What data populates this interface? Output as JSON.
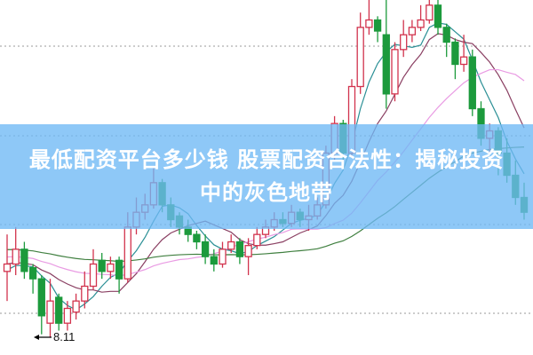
{
  "title_lines": [
    "最低配资平台多少钱 股票配资合法性：揭秘投资",
    "中的灰色地带"
  ],
  "colors": {
    "up": "#d2334d",
    "down": "#1c9a3c",
    "banner": "#6eb9f5",
    "ma1": "#2a8f95",
    "ma2": "#8a3f62",
    "ma3": "#e99be3",
    "ma4": "#3f7f3f"
  },
  "chart_data": {
    "type": "candlestick",
    "low_annotation": "8.11",
    "grid": "dotted horizontal",
    "moving_averages": [
      "ma1",
      "ma2",
      "ma3",
      "ma4"
    ],
    "candles": [
      [
        9.0,
        9.5,
        8.6,
        9.1
      ],
      [
        9.1,
        9.6,
        8.95,
        9.3
      ],
      [
        9.3,
        9.4,
        8.9,
        9.0
      ],
      [
        9.05,
        9.1,
        8.7,
        8.9
      ],
      [
        8.9,
        8.95,
        8.15,
        8.4
      ],
      [
        8.3,
        8.9,
        8.11,
        8.6
      ],
      [
        8.65,
        8.7,
        8.2,
        8.3
      ],
      [
        8.3,
        8.6,
        8.2,
        8.5
      ],
      [
        8.45,
        8.7,
        8.35,
        8.6
      ],
      [
        8.6,
        9.0,
        8.5,
        8.8
      ],
      [
        8.8,
        9.3,
        8.75,
        9.1
      ],
      [
        9.15,
        9.25,
        8.9,
        9.0
      ],
      [
        9.0,
        9.2,
        8.9,
        9.1
      ],
      [
        9.15,
        9.2,
        8.7,
        8.9
      ],
      [
        8.9,
        9.8,
        8.85,
        9.6
      ],
      [
        9.6,
        10.0,
        9.5,
        9.8
      ],
      [
        9.8,
        10.05,
        9.7,
        9.9
      ],
      [
        9.9,
        10.4,
        9.85,
        10.2
      ],
      [
        10.2,
        10.25,
        9.8,
        9.9
      ],
      [
        9.9,
        10.0,
        9.6,
        9.7
      ],
      [
        9.75,
        9.8,
        9.5,
        9.6
      ],
      [
        9.6,
        9.7,
        9.4,
        9.5
      ],
      [
        9.5,
        9.55,
        9.3,
        9.4
      ],
      [
        9.4,
        9.5,
        9.1,
        9.2
      ],
      [
        9.2,
        9.3,
        9.0,
        9.1
      ],
      [
        9.1,
        9.4,
        9.05,
        9.3
      ],
      [
        9.3,
        9.5,
        9.25,
        9.4
      ],
      [
        9.4,
        9.45,
        9.1,
        9.2
      ],
      [
        9.2,
        9.45,
        8.95,
        9.35
      ],
      [
        9.35,
        9.6,
        9.3,
        9.5
      ],
      [
        9.5,
        9.7,
        9.45,
        9.6
      ],
      [
        9.6,
        9.8,
        9.55,
        9.7
      ],
      [
        9.7,
        9.8,
        9.6,
        9.65
      ],
      [
        9.65,
        9.9,
        9.6,
        9.8
      ],
      [
        9.8,
        9.85,
        9.6,
        9.7
      ],
      [
        9.7,
        9.9,
        9.55,
        9.75
      ],
      [
        9.75,
        10.0,
        9.7,
        9.9
      ],
      [
        9.9,
        10.7,
        9.85,
        10.6
      ],
      [
        10.6,
        11.1,
        10.5,
        11.0
      ],
      [
        11.0,
        11.05,
        10.5,
        10.6
      ],
      [
        10.6,
        11.6,
        10.55,
        11.5
      ],
      [
        11.5,
        12.5,
        11.4,
        12.3
      ],
      [
        12.3,
        12.7,
        12.2,
        12.4
      ],
      [
        12.4,
        12.45,
        12.1,
        12.25
      ],
      [
        12.2,
        12.7,
        11.2,
        11.4
      ],
      [
        11.4,
        12.1,
        11.3,
        12.0
      ],
      [
        12.0,
        12.4,
        11.9,
        12.2
      ],
      [
        12.2,
        12.4,
        12.1,
        12.3
      ],
      [
        12.3,
        12.6,
        12.25,
        12.4
      ],
      [
        12.4,
        12.7,
        12.35,
        12.6
      ],
      [
        12.6,
        12.7,
        12.2,
        12.3
      ],
      [
        12.3,
        12.35,
        11.9,
        12.1
      ],
      [
        12.1,
        12.15,
        11.6,
        11.8
      ],
      [
        11.8,
        12.2,
        11.7,
        11.9
      ],
      [
        11.9,
        12.0,
        11.1,
        11.2
      ],
      [
        11.2,
        11.3,
        10.7,
        10.8
      ],
      [
        10.8,
        11.0,
        10.6,
        10.9
      ],
      [
        10.9,
        10.95,
        10.3,
        10.6
      ],
      [
        10.6,
        10.8,
        10.2,
        10.3
      ],
      [
        10.3,
        10.5,
        9.9,
        10.0
      ],
      [
        10.0,
        10.2,
        9.7,
        9.8
      ]
    ]
  }
}
